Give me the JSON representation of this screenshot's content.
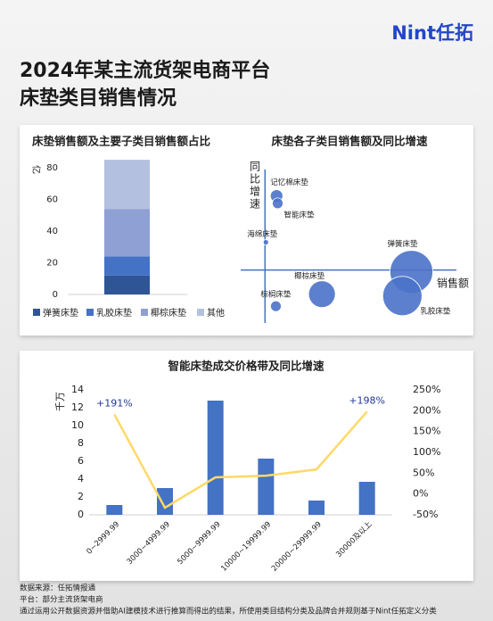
{
  "logo": "Nint任拓",
  "title": [
    "2024年某主流货架电商平台",
    "床垫类目销售情况"
  ],
  "chart_data": [
    {
      "type": "bar",
      "stacked": true,
      "title": "床垫销售额及主要子类目销售额占比",
      "y_label": "亿",
      "ylim": [
        0,
        90
      ],
      "yticks": [
        0,
        20,
        40,
        60,
        80
      ],
      "series": [
        {
          "name": "弹簧床垫",
          "color": "#2f5597",
          "values": [
            12
          ]
        },
        {
          "name": "乳胶床垫",
          "color": "#4472c4",
          "values": [
            12
          ]
        },
        {
          "name": "椰棕床垫",
          "color": "#8ea0d4",
          "values": [
            30
          ]
        },
        {
          "name": "其他",
          "color": "#b4c0e0",
          "values": [
            31
          ]
        }
      ]
    },
    {
      "type": "scatter",
      "title": "床垫各子类目销售额及同比增速",
      "x_label": "销售额",
      "y_label": "同比增速",
      "xlim": [
        -1,
        10
      ],
      "ylim": [
        -3,
        6
      ],
      "color": "#4a72c8",
      "labels": [
        "记忆棉床垫",
        "智能床垫",
        "海绵床垫",
        "弹簧床垫",
        "椰棕床垫",
        "棕榈床垫",
        "乳胶床垫"
      ],
      "x": [
        0.64,
        0.7,
        0.05,
        8.1,
        3.15,
        0.6,
        7.6
      ],
      "values": [
        4.0,
        3.6,
        1.5,
        -0.1,
        -1.3,
        -1.95,
        -1.4
      ],
      "sizes": [
        7,
        6,
        3,
        24,
        15,
        6,
        22
      ]
    },
    {
      "type": "combo",
      "title": "智能床垫成交价格带及同比增速",
      "y_label": "千万",
      "categories": [
        "0~2999.99",
        "3000~4999.99",
        "5000~9999.99",
        "10000~19999.99",
        "20000~29999.99",
        "30000及以上"
      ],
      "ylim": [
        0,
        14
      ],
      "yticks": [
        0,
        2,
        4,
        6,
        8,
        10,
        12,
        14
      ],
      "y2lim": [
        -50,
        250
      ],
      "y2ticks": [
        {
          "value": 250,
          "label": "250%"
        },
        {
          "value": 200,
          "label": "200%"
        },
        {
          "value": 150,
          "label": "150%"
        },
        {
          "value": 100,
          "label": "100%"
        },
        {
          "value": 50,
          "label": "50%"
        },
        {
          "value": 0,
          "label": "0%"
        },
        {
          "value": -50,
          "label": "-50%"
        }
      ],
      "series": [
        {
          "type": "bar",
          "color": "#4472c4",
          "values": [
            1.1,
            3.0,
            12.8,
            6.3,
            1.6,
            3.7
          ]
        },
        {
          "type": "line",
          "axis": "y2",
          "color": "#ffd966",
          "values": [
            191,
            -33,
            40,
            44,
            59,
            198
          ],
          "value_labels": [
            "+191%",
            null,
            null,
            null,
            null,
            "+198%"
          ]
        }
      ]
    }
  ],
  "footer": [
    "数据来源：任拓情报通",
    "平台：部分主流货架电商",
    "通过运用公开数据资源并借助AI建模技术进行推算而得出的结果，所使用类目结构分类及品牌合并规则基于Nint任拓定义分类"
  ]
}
